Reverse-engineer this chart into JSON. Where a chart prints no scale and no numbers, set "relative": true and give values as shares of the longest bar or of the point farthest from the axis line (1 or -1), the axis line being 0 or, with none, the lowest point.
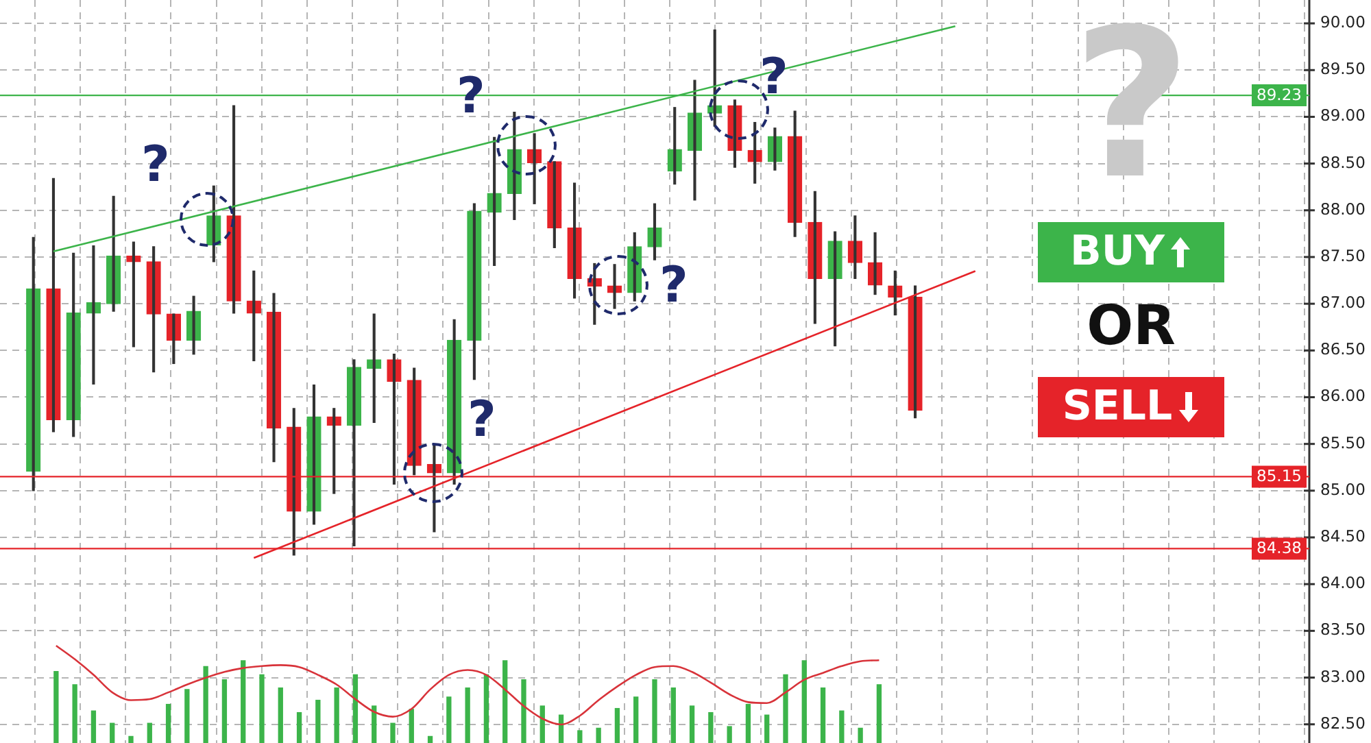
{
  "chart_data": [
    {
      "type": "candlestick",
      "categories": [
        null,
        null,
        null,
        null,
        null,
        null,
        null,
        null,
        null,
        null,
        null,
        null,
        null,
        null,
        null,
        null,
        null,
        null,
        null,
        null,
        null,
        null,
        null,
        null,
        null,
        null,
        null,
        null,
        null,
        null,
        null,
        null,
        null,
        null,
        null,
        null,
        null,
        null,
        null,
        null,
        null,
        null,
        null,
        null,
        null,
        null,
        null,
        null,
        null,
        null,
        null,
        null,
        null,
        null,
        null,
        null,
        null,
        null,
        null,
        null,
        null,
        null,
        null
      ],
      "ohlc": [
        [
          85.21,
          87.71,
          85.0,
          87.16
        ],
        [
          87.16,
          88.34,
          85.63,
          85.76
        ],
        [
          85.76,
          87.54,
          85.58,
          86.9
        ],
        [
          86.9,
          87.62,
          86.14,
          87.01
        ],
        [
          87.0,
          88.15,
          86.92,
          87.51
        ],
        [
          87.51,
          87.66,
          86.54,
          87.45
        ],
        [
          87.45,
          87.61,
          86.27,
          86.89
        ],
        [
          86.89,
          86.89,
          86.36,
          86.61
        ],
        [
          86.61,
          87.08,
          86.46,
          86.92
        ],
        [
          87.63,
          88.26,
          87.45,
          87.94
        ],
        [
          87.94,
          89.12,
          86.9,
          87.03
        ],
        [
          87.03,
          87.35,
          86.39,
          86.9
        ],
        [
          86.91,
          87.11,
          85.31,
          85.67
        ],
        [
          85.68,
          85.88,
          84.31,
          84.78
        ],
        [
          84.78,
          86.13,
          84.64,
          85.79
        ],
        [
          85.79,
          85.88,
          84.97,
          85.7
        ],
        [
          85.7,
          86.4,
          84.41,
          86.32
        ],
        [
          86.31,
          86.89,
          85.73,
          86.4
        ],
        [
          86.4,
          86.46,
          85.07,
          86.17
        ],
        [
          86.18,
          86.31,
          85.17,
          85.27
        ],
        [
          85.28,
          85.48,
          84.56,
          85.19
        ],
        [
          85.19,
          86.83,
          85.07,
          86.61
        ],
        [
          86.61,
          88.07,
          86.19,
          87.99
        ],
        [
          87.98,
          88.78,
          87.41,
          88.18
        ],
        [
          88.18,
          89.05,
          87.9,
          88.65
        ],
        [
          88.65,
          88.82,
          88.07,
          88.51
        ],
        [
          88.52,
          88.52,
          87.6,
          87.81
        ],
        [
          87.81,
          88.29,
          87.06,
          87.27
        ],
        [
          87.27,
          87.43,
          86.78,
          87.19
        ],
        [
          87.19,
          87.42,
          86.95,
          87.12
        ],
        [
          87.12,
          87.76,
          87.03,
          87.61
        ],
        [
          87.61,
          88.07,
          87.47,
          87.81
        ],
        [
          88.42,
          89.1,
          88.28,
          88.65
        ],
        [
          88.64,
          89.39,
          88.11,
          89.04
        ],
        [
          89.04,
          89.93,
          88.9,
          89.12
        ],
        [
          89.12,
          89.18,
          88.46,
          88.64
        ],
        [
          88.64,
          88.94,
          88.29,
          88.52
        ],
        [
          88.52,
          88.88,
          88.43,
          88.79
        ],
        [
          88.79,
          89.06,
          87.72,
          87.87
        ],
        [
          87.87,
          88.2,
          86.79,
          87.27
        ],
        [
          87.27,
          87.77,
          86.55,
          87.67
        ],
        [
          87.67,
          87.94,
          87.27,
          87.44
        ],
        [
          87.44,
          87.76,
          87.1,
          87.2
        ],
        [
          87.19,
          87.35,
          86.88,
          87.07
        ],
        [
          87.07,
          87.19,
          85.78,
          85.86
        ],
        null,
        null,
        null,
        null,
        null,
        null,
        null,
        null,
        null,
        null,
        null,
        null,
        null,
        null,
        null,
        null,
        null,
        null
      ],
      "colors": [
        "#3cb44a",
        "#e52329",
        "#3cb44a",
        "#3cb44a",
        "#3cb44a",
        "#e52329",
        "#e52329",
        "#e52329",
        "#3cb44a",
        "#3cb44a",
        "#e52329",
        "#e52329",
        "#e52329",
        "#e52329",
        "#3cb44a",
        "#e52329",
        "#3cb44a",
        "#3cb44a",
        "#e52329",
        "#e52329",
        "#e52329",
        "#3cb44a",
        "#3cb44a",
        "#3cb44a",
        "#3cb44a",
        "#e52329",
        "#e52329",
        "#e52329",
        "#e52329",
        "#e52329",
        "#3cb44a",
        "#3cb44a",
        "#3cb44a",
        "#3cb44a",
        "#3cb44a",
        "#e52329",
        "#e52329",
        "#3cb44a",
        "#e52329",
        "#e52329",
        "#3cb44a",
        "#e52329",
        "#e52329",
        "#e52329",
        "#e52329",
        null,
        null,
        null,
        null,
        null,
        null,
        null,
        null,
        null,
        null,
        null,
        null,
        null,
        null,
        null,
        null,
        null,
        null
      ],
      "series": [
        {
          "type": "line",
          "color": "#3cb44a",
          "values": [
            null,
            87.56,
            null,
            null,
            null,
            null,
            null,
            null,
            null,
            null,
            null,
            null,
            null,
            null,
            null,
            null,
            null,
            null,
            null,
            null,
            null,
            null,
            null,
            null,
            null,
            null,
            null,
            null,
            null,
            null,
            null,
            null,
            null,
            null,
            null,
            null,
            null,
            null,
            null,
            null,
            null,
            null,
            null,
            null,
            null,
            null,
            89.97,
            null,
            null,
            null,
            null,
            null,
            null,
            null,
            null,
            null,
            null,
            null,
            null,
            null,
            null,
            null,
            null
          ]
        },
        {
          "type": "line",
          "color": "#e52329",
          "values": [
            null,
            null,
            null,
            null,
            null,
            null,
            null,
            null,
            null,
            null,
            null,
            84.28,
            null,
            null,
            null,
            null,
            null,
            null,
            null,
            null,
            null,
            null,
            null,
            null,
            null,
            null,
            null,
            null,
            null,
            null,
            null,
            null,
            null,
            null,
            null,
            null,
            null,
            null,
            null,
            null,
            null,
            null,
            null,
            null,
            null,
            null,
            null,
            87.35,
            null,
            null,
            null,
            null,
            null,
            null,
            null,
            null,
            null,
            null,
            null,
            null,
            null,
            null,
            null
          ]
        }
      ],
      "ylim": [
        82.3,
        90.25
      ],
      "yticks": [
        {
          "value": 82.5,
          "label": "82.50"
        },
        {
          "value": 83,
          "label": "83.00"
        },
        {
          "value": 83.5,
          "label": "83.50"
        },
        {
          "value": 84,
          "label": "84.00"
        },
        {
          "value": 84.5,
          "label": "84.50"
        },
        {
          "value": 85,
          "label": "85.00"
        },
        {
          "value": 85.5,
          "label": "85.50"
        },
        {
          "value": 86,
          "label": "86.00"
        },
        {
          "value": 86.5,
          "label": "86.50"
        },
        {
          "value": 87,
          "label": "87.00"
        },
        {
          "value": 87.5,
          "label": "87.50"
        },
        {
          "value": 88,
          "label": "88.00"
        },
        {
          "value": 88.5,
          "label": "88.50"
        },
        {
          "value": 89,
          "label": "89.00"
        },
        {
          "value": 89.5,
          "label": "89.50"
        },
        {
          "value": 90,
          "label": "90.00"
        }
      ],
      "ref_lines": [
        {
          "axis": "y",
          "value": 89.23,
          "label": "89.23",
          "color": "#3cb44a"
        },
        {
          "axis": "y",
          "value": 85.15,
          "label": "85.15",
          "color": "#e52329"
        },
        {
          "axis": "y",
          "value": 84.38,
          "label": "84.38",
          "color": "#e52329"
        }
      ],
      "annotations": [
        "?",
        "?",
        "?",
        "?",
        "?",
        "?",
        "BUY",
        "OR",
        "SELL"
      ],
      "grid": true,
      "tick_labels": "y",
      "legend": false
    },
    {
      "type": "bar",
      "relative": true,
      "color": "#3cb44a",
      "categories": [
        null,
        null,
        null,
        null,
        null,
        null,
        null,
        null,
        null,
        null,
        null,
        null,
        null,
        null,
        null,
        null,
        null,
        null,
        null,
        null,
        null,
        null,
        null,
        null,
        null,
        null,
        null,
        null,
        null,
        null,
        null,
        null,
        null,
        null,
        null,
        null,
        null,
        null,
        null,
        null,
        null,
        null,
        null,
        null,
        null
      ],
      "values": [
        0.87,
        0.71,
        0.39,
        0.24,
        0.08,
        0.24,
        0.47,
        0.65,
        0.93,
        0.77,
        1,
        0.83,
        0.67,
        0.37,
        0.52,
        0.67,
        0.83,
        0.45,
        0.24,
        0.41,
        0.08,
        0.56,
        0.67,
        0.83,
        1,
        0.77,
        0.45,
        0.34,
        0.15,
        0.18,
        0.42,
        0.56,
        0.77,
        0.67,
        0.45,
        0.37,
        0.2,
        0.47,
        0.34,
        0.83,
        1,
        0.67,
        0.39,
        0.18,
        0.71
      ],
      "tick_labels": false,
      "legend": false
    },
    {
      "type": "line",
      "relative": true,
      "color": "#d8333a",
      "categories": [
        null,
        null,
        null,
        null,
        null,
        null,
        null,
        null,
        null,
        null,
        null,
        null,
        null,
        null,
        null,
        null,
        null,
        null,
        null,
        null,
        null,
        null,
        null,
        null,
        null,
        null,
        null,
        null,
        null,
        null,
        null,
        null,
        null,
        null,
        null,
        null,
        null,
        null,
        null,
        null,
        null,
        null,
        null,
        null,
        null
      ],
      "values": [
        1.0,
        0.86,
        0.7,
        0.52,
        0.44,
        0.45,
        0.52,
        0.6,
        0.67,
        0.73,
        0.77,
        0.79,
        0.8,
        0.78,
        0.7,
        0.6,
        0.45,
        0.32,
        0.27,
        0.35,
        0.55,
        0.7,
        0.75,
        0.7,
        0.55,
        0.38,
        0.25,
        0.19,
        0.28,
        0.44,
        0.58,
        0.7,
        0.78,
        0.79,
        0.73,
        0.62,
        0.5,
        0.42,
        0.41,
        0.52,
        0.65,
        0.72,
        0.79,
        0.84,
        0.85
      ],
      "tick_labels": false,
      "legend": false
    }
  ]
}
